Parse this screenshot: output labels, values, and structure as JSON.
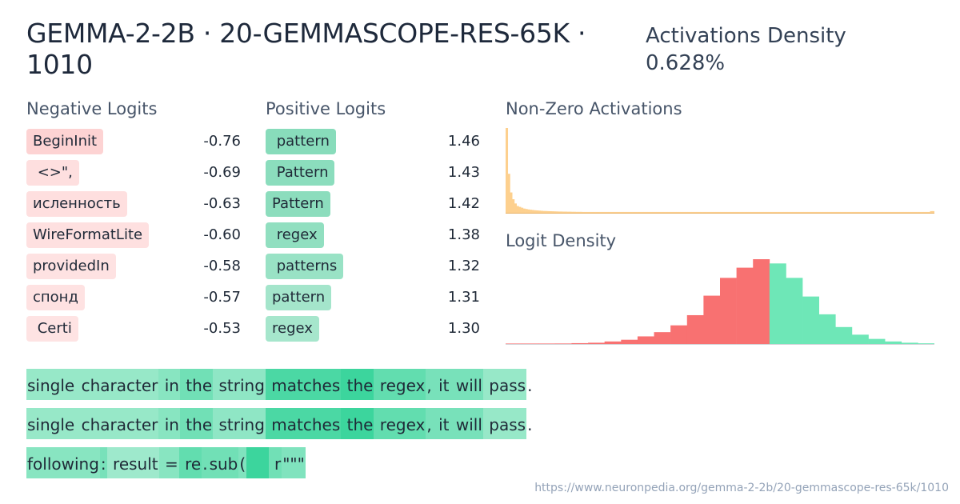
{
  "header": {
    "title": "GEMMA-2-2B · 20-GEMMASCOPE-RES-65K · 1010",
    "density_label": "Activations Density",
    "density_value": "0.628%"
  },
  "negative": {
    "heading": "Negative Logits",
    "items": [
      {
        "token": "BeginInit",
        "value": "-0.76",
        "strength": 1.0
      },
      {
        "token": " <>\",",
        "value": "-0.69",
        "strength": 0.6
      },
      {
        "token": "исленность",
        "value": "-0.63",
        "strength": 0.6
      },
      {
        "token": "WireFormatLite",
        "value": "-0.60",
        "strength": 0.55
      },
      {
        "token": "providedIn",
        "value": "-0.58",
        "strength": 0.5
      },
      {
        "token": "спонд",
        "value": "-0.57",
        "strength": 0.5
      },
      {
        "token": " Certi",
        "value": "-0.53",
        "strength": 0.45
      }
    ]
  },
  "positive": {
    "heading": "Positive Logits",
    "items": [
      {
        "token": " pattern",
        "value": "1.46",
        "strength": 1.0
      },
      {
        "token": " Pattern",
        "value": "1.43",
        "strength": 0.95
      },
      {
        "token": "Pattern",
        "value": "1.42",
        "strength": 0.93
      },
      {
        "token": " regex",
        "value": "1.38",
        "strength": 0.85
      },
      {
        "token": " patterns",
        "value": "1.32",
        "strength": 0.72
      },
      {
        "token": "pattern",
        "value": "1.31",
        "strength": 0.55
      },
      {
        "token": "regex",
        "value": "1.30",
        "strength": 0.52
      }
    ]
  },
  "chart_data": [
    {
      "type": "bar",
      "title": "Non-Zero Activations",
      "bar_color": "#fdd08e",
      "values": [
        100,
        46,
        24,
        16,
        11,
        8,
        7,
        6,
        5,
        4.5,
        4,
        3.6,
        3.3,
        3,
        2.8,
        2.6,
        2.4,
        2.2,
        2.1,
        2,
        1.9,
        1.8,
        1.7,
        1.6,
        1.5,
        1.5,
        1.4,
        1.4,
        1.3,
        1.3,
        1.2,
        1.2,
        1.1,
        1.1,
        1.1,
        1,
        1,
        1,
        1,
        1,
        1,
        1,
        1,
        1,
        1,
        1,
        1,
        1,
        1,
        1,
        1,
        1,
        1,
        1,
        1,
        1,
        1,
        1,
        1,
        1,
        1,
        1,
        1,
        1,
        1,
        1,
        1,
        1,
        1,
        1,
        1,
        1,
        1,
        1,
        1,
        1,
        1,
        1,
        1,
        1,
        1,
        1,
        1,
        1,
        1,
        1,
        1,
        1,
        1,
        1,
        1,
        1,
        1,
        1,
        1,
        1,
        1,
        1,
        1,
        1,
        1,
        1,
        1,
        1,
        1,
        1,
        1,
        1,
        1,
        1,
        1,
        1,
        1,
        1,
        1,
        1,
        1,
        1,
        1,
        1,
        1,
        1,
        1,
        1,
        1,
        1,
        1,
        1,
        1,
        1,
        1,
        1,
        1,
        1,
        1,
        1,
        1,
        1,
        1,
        1,
        1,
        1,
        1,
        1,
        1,
        1,
        1,
        1,
        1,
        1,
        1,
        1,
        1,
        1,
        1,
        1,
        1,
        1,
        1,
        1,
        1,
        1,
        1,
        1,
        1,
        1,
        1,
        1,
        1,
        1,
        1,
        1,
        1,
        1,
        1,
        1,
        1,
        1,
        1,
        1,
        1,
        1,
        1,
        1,
        1,
        1,
        1,
        1,
        1,
        1,
        1,
        1,
        1,
        1,
        2,
        2
      ]
    },
    {
      "type": "bar",
      "title": "Logit Density",
      "negative_color": "#f87171",
      "positive_color": "#6ee7b7",
      "values": [
        0.2,
        0.3,
        0.4,
        0.6,
        1,
        1.5,
        3,
        5,
        9,
        14,
        22,
        34,
        57,
        78,
        90,
        100,
        95,
        78,
        56,
        35,
        20,
        11,
        6,
        3,
        1.5,
        0.8
      ],
      "split_index": 16
    }
  ],
  "snippets": [
    [
      {
        "t": "single",
        "a": 0.35
      },
      {
        "t": " character",
        "a": 0.35
      },
      {
        "t": " in",
        "a": 0.45
      },
      {
        "t": " the",
        "a": 0.6
      },
      {
        "t": " string",
        "a": 0.4
      },
      {
        "t": " matches",
        "a": 0.85
      },
      {
        "t": " the",
        "a": 0.95
      },
      {
        "t": " regex",
        "a": 0.7
      },
      {
        "t": ",",
        "a": 0.55
      },
      {
        "t": " it",
        "a": 0.55
      },
      {
        "t": " will",
        "a": 0.55
      },
      {
        "t": " pass",
        "a": 0.35
      },
      {
        "t": ".",
        "a": 0
      }
    ],
    [
      {
        "t": "single",
        "a": 0.35
      },
      {
        "t": " character",
        "a": 0.35
      },
      {
        "t": " in",
        "a": 0.45
      },
      {
        "t": " the",
        "a": 0.6
      },
      {
        "t": " string",
        "a": 0.4
      },
      {
        "t": " matches",
        "a": 0.85
      },
      {
        "t": " the",
        "a": 0.95
      },
      {
        "t": " regex",
        "a": 0.7
      },
      {
        "t": ",",
        "a": 0.55
      },
      {
        "t": " it",
        "a": 0.55
      },
      {
        "t": " will",
        "a": 0.55
      },
      {
        "t": " pass",
        "a": 0.35
      },
      {
        "t": ".",
        "a": 0
      }
    ],
    [
      {
        "t": "following",
        "a": 0.45
      },
      {
        "t": ":",
        "a": 0.55
      },
      {
        "t": " result",
        "a": 0.3
      },
      {
        "t": " =",
        "a": 0.45
      },
      {
        "t": " re",
        "a": 0.7
      },
      {
        "t": ".",
        "a": 0.6
      },
      {
        "t": "sub",
        "a": 0.6
      },
      {
        "t": "(",
        "a": 0.5
      },
      {
        "t": "    ",
        "a": 0.95
      },
      {
        "t": " r",
        "a": 0.6
      },
      {
        "t": "\"\"\"",
        "a": 0.5
      }
    ]
  ],
  "footer": {
    "url": "https://www.neuronpedia.org/gemma-2-2b/20-gemmascope-res-65k/1010"
  }
}
